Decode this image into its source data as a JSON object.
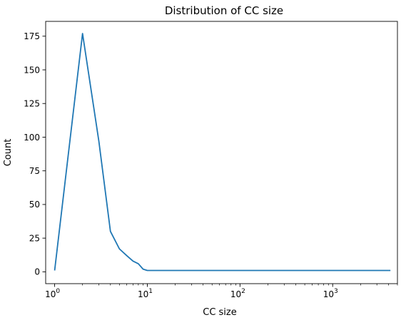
{
  "chart_data": {
    "type": "line",
    "title": "Distribution of CC size",
    "xlabel": "CC size",
    "ylabel": "Count",
    "xscale": "log",
    "xlim": [
      0.8,
      5000
    ],
    "ylim": [
      -8.8,
      186
    ],
    "grid": false,
    "x_ticks": [
      {
        "value": 1,
        "base": "10",
        "exp": "0"
      },
      {
        "value": 10,
        "base": "10",
        "exp": "1"
      },
      {
        "value": 100,
        "base": "10",
        "exp": "2"
      },
      {
        "value": 1000,
        "base": "10",
        "exp": "3"
      }
    ],
    "y_ticks": [
      {
        "value": 0,
        "label": "0"
      },
      {
        "value": 25,
        "label": "25"
      },
      {
        "value": 50,
        "label": "50"
      },
      {
        "value": 75,
        "label": "75"
      },
      {
        "value": 100,
        "label": "100"
      },
      {
        "value": 125,
        "label": "125"
      },
      {
        "value": 150,
        "label": "150"
      },
      {
        "value": 175,
        "label": "175"
      }
    ],
    "series": [
      {
        "color": "#1f77b4",
        "x": [
          1,
          2,
          3,
          4,
          5,
          6,
          7,
          8,
          9,
          10,
          12,
          15,
          20,
          50,
          100,
          500,
          1000,
          4200
        ],
        "y": [
          1,
          177,
          97,
          30,
          17,
          12,
          8,
          6,
          2,
          1,
          1,
          1,
          1,
          1,
          1,
          1,
          1,
          1
        ]
      }
    ]
  }
}
